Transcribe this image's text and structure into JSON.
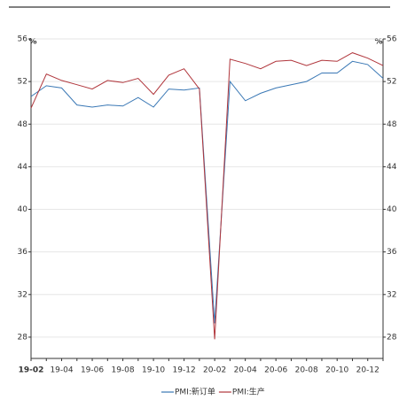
{
  "chart_data": {
    "type": "line",
    "y_label": "%",
    "y2_label": "%",
    "categories": [
      "19-02",
      null,
      "19-04",
      null,
      "19-06",
      null,
      "19-08",
      null,
      "19-10",
      null,
      "19-12",
      null,
      "20-02",
      null,
      "20-04",
      null,
      "20-06",
      null,
      "20-08",
      null,
      "20-10",
      null,
      "20-12",
      null
    ],
    "series": [
      {
        "name": "PMI:新订单",
        "color": "#3a78b5",
        "values": [
          50.6,
          51.6,
          51.4,
          49.8,
          49.6,
          49.8,
          49.7,
          50.5,
          49.6,
          51.3,
          51.2,
          51.4,
          29.3,
          52.0,
          50.2,
          50.9,
          51.4,
          51.7,
          52.0,
          52.8,
          52.8,
          53.9,
          53.6,
          52.3
        ]
      },
      {
        "name": "PMI:生产",
        "color": "#b0353b",
        "values": [
          49.5,
          52.7,
          52.1,
          51.7,
          51.3,
          52.1,
          51.9,
          52.3,
          50.8,
          52.6,
          53.2,
          51.3,
          27.8,
          54.1,
          53.7,
          53.2,
          53.9,
          54.0,
          53.5,
          54.0,
          53.9,
          54.7,
          54.2,
          53.5
        ]
      }
    ],
    "ylim": [
      26,
      56
    ],
    "yticks": [
      28,
      32,
      36,
      40,
      44,
      48,
      52,
      56
    ],
    "y2lim": [
      26,
      56
    ],
    "y2ticks": [
      28,
      32,
      36,
      40,
      44,
      48,
      52,
      56
    ],
    "grid": true,
    "legend": "bottom"
  }
}
